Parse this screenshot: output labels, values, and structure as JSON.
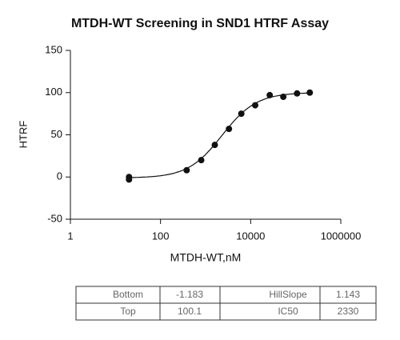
{
  "chart_data": {
    "type": "scatter",
    "title": "MTDH-WT Screening in SND1 HTRF Assay",
    "x_label": "MTDH-WT,nM",
    "y_label": "HTRF",
    "x": [
      20,
      20,
      380,
      800,
      1600,
      3300,
      6200,
      12600,
      26500,
      53000,
      107000,
      205000
    ],
    "values": [
      0,
      -3,
      8,
      20,
      38,
      57,
      75,
      85,
      97,
      95,
      99,
      100
    ],
    "color": "#111111",
    "x_log": true,
    "xlim": [
      1,
      1000000
    ],
    "xticks": [
      1,
      100,
      10000,
      1000000
    ],
    "ylim": [
      -50,
      150
    ],
    "yticks": [
      -50,
      0,
      50,
      100,
      150
    ]
  },
  "table": {
    "rows": [
      [
        "Bottom",
        -1.183,
        "HillSlope",
        1.143
      ],
      [
        "Top",
        100.1,
        "IC50",
        2330
      ]
    ]
  }
}
